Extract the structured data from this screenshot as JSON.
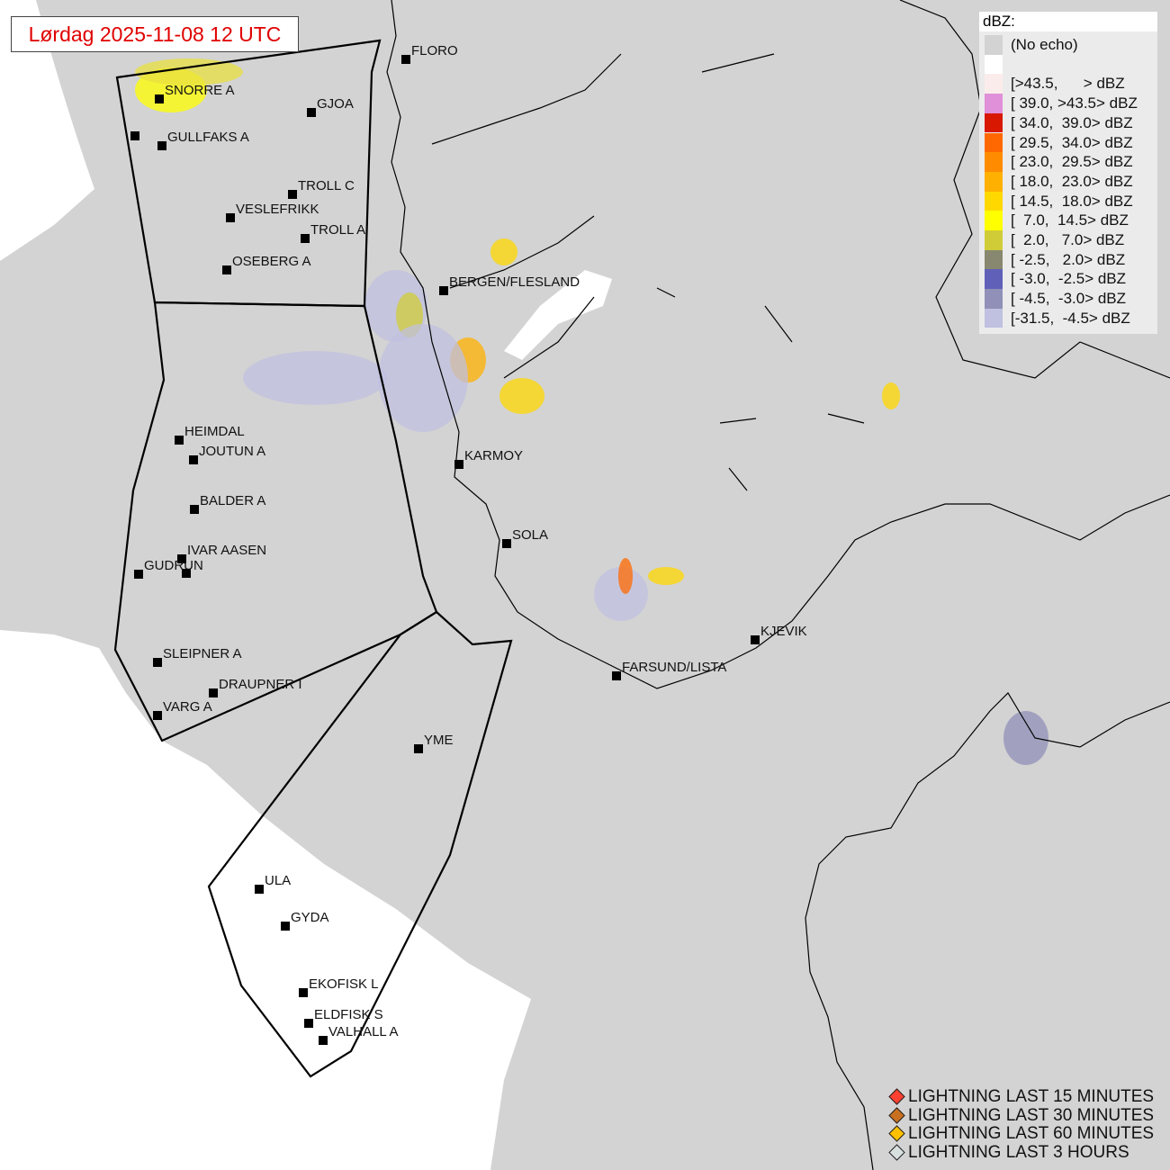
{
  "title": "Lørdag 2025-11-08 12 UTC",
  "legend": {
    "heading": "dBZ:",
    "items": [
      {
        "label": "(No echo)",
        "color": "#d3d3d3"
      },
      {
        "label": "",
        "color": "#ffffff"
      },
      {
        "label": "[>43.5,      > dBZ",
        "color": "#fbecec"
      },
      {
        "label": "[ 39.0, >43.5> dBZ",
        "color": "#e090d8"
      },
      {
        "label": "[ 34.0,  39.0> dBZ",
        "color": "#d81800"
      },
      {
        "label": "[ 29.5,  34.0> dBZ",
        "color": "#ff6800"
      },
      {
        "label": "[ 23.0,  29.5> dBZ",
        "color": "#ff8c00"
      },
      {
        "label": "[ 18.0,  23.0> dBZ",
        "color": "#ffb000"
      },
      {
        "label": "[ 14.5,  18.0> dBZ",
        "color": "#ffd800"
      },
      {
        "label": "[  7.0,  14.5> dBZ",
        "color": "#ffff00"
      },
      {
        "label": "[  2.0,   7.0> dBZ",
        "color": "#d0cc38"
      },
      {
        "label": "[ -2.5,   2.0> dBZ",
        "color": "#888870"
      },
      {
        "label": "[ -3.0,  -2.5> dBZ",
        "color": "#6060b8"
      },
      {
        "label": "[ -4.5,  -3.0> dBZ",
        "color": "#9090b8"
      },
      {
        "label": "[-31.5,  -4.5> dBZ",
        "color": "#c0c0e0"
      }
    ]
  },
  "lightning": [
    {
      "label": "LIGHTNING LAST 15 MINUTES",
      "color": "#ff4030"
    },
    {
      "label": "LIGHTNING LAST 30 MINUTES",
      "color": "#c87020"
    },
    {
      "label": "LIGHTNING LAST 60 MINUTES",
      "color": "#ffc000"
    },
    {
      "label": "LIGHTNING LAST 3 HOURS",
      "color": "#d8e0e0"
    }
  ],
  "stations": [
    "FLORO",
    "SNORRE A",
    "",
    "GJOA",
    "GULLFAKS A",
    "TROLL C",
    "VESLEFRIKK",
    "TROLL A",
    "OSEBERG A",
    "BERGEN/FLESLAND",
    "HEIMDAL",
    "JOUTUN A",
    "KARMOY",
    "BALDER A",
    "SOLA",
    "IVAR AASEN",
    "GUDRUN",
    "",
    "KJEVIK",
    "SLEIPNER A",
    "FARSUND/LISTA",
    "DRAUPNER I",
    "VARG A",
    "YME",
    "ULA",
    "GYDA",
    "EKOFISK L",
    "ELDFISK S",
    "VALHALL A"
  ]
}
